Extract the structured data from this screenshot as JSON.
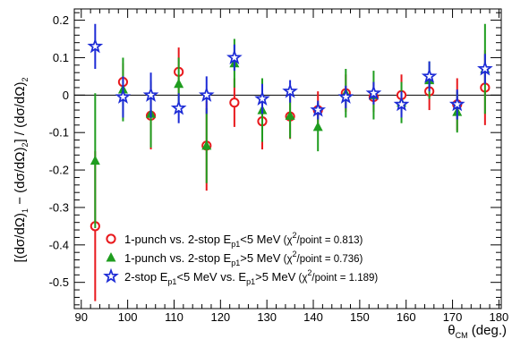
{
  "chart_data": {
    "type": "scatter",
    "title": "",
    "xlabel": "θCM (deg.)",
    "xlabel_main": "θ",
    "xlabel_sub": "CM",
    "xlabel_unit": " (deg.)",
    "ylabel": "[(dσ/dΩ)1 − (dσ/dΩ)2] / (dσ/dΩ)2",
    "ylabel_parts": {
      "open": "[(dσ/dΩ)",
      "sub1": "1",
      "mid": " − (dσ/dΩ)",
      "sub2": "2",
      "mid2": "] / (dσ/dΩ)",
      "sub3": "2"
    },
    "xlim": [
      88.5,
      180.5
    ],
    "ylim": [
      -0.57,
      0.23
    ],
    "x_ticks": [
      90,
      100,
      110,
      120,
      130,
      140,
      150,
      160,
      170,
      180
    ],
    "x_tick_labels": [
      "90",
      "100",
      "110",
      "120",
      "130",
      "140",
      "150",
      "160",
      "170",
      "180"
    ],
    "y_ticks": [
      -0.5,
      -0.4,
      -0.3,
      -0.2,
      -0.1,
      0,
      0.1,
      0.2
    ],
    "y_tick_labels": [
      "-0.5",
      "-0.4",
      "-0.3",
      "-0.2",
      "-0.1",
      "0",
      "0.1",
      "0.2"
    ],
    "reference_line": 0,
    "grid": false,
    "legend_position": "bottom-left",
    "series": [
      {
        "name": "1-punch vs. 2-stop Ep1<5 MeV",
        "legend_parts": {
          "main": "1-punch vs. 2-stop E",
          "sub": "p1",
          "rest": "<5 MeV"
        },
        "fit": "(χ2/point = 0.813)",
        "fit_parts": {
          "open": "(χ",
          "sup": "2",
          "rest": "/point = 0.813)"
        },
        "marker": "open-circle",
        "color": "#e8191d",
        "x": [
          93,
          99,
          105,
          111,
          117,
          123,
          129,
          135,
          141,
          147,
          153,
          159,
          165,
          171,
          177
        ],
        "y": [
          -0.35,
          0.035,
          -0.055,
          0.062,
          -0.135,
          -0.02,
          -0.07,
          -0.057,
          -0.04,
          0.005,
          -0.005,
          0.0,
          0.01,
          -0.025,
          0.02
        ],
        "err": [
          0.2,
          0.05,
          0.09,
          0.065,
          0.12,
          0.065,
          0.075,
          0.06,
          0.05,
          0.05,
          0.04,
          0.055,
          0.05,
          0.07,
          0.1
        ]
      },
      {
        "name": "1-punch vs. 2-stop Ep1>5 MeV",
        "legend_parts": {
          "main": "1-punch vs. 2-stop E",
          "sub": "p1",
          "rest": ">5 MeV"
        },
        "fit": "(χ2/point = 0.736)",
        "fit_parts": {
          "open": "(χ",
          "sup": "2",
          "rest": "/point = 0.736)"
        },
        "marker": "filled-triangle",
        "color": "#1f9d1f",
        "x": [
          93,
          99,
          105,
          111,
          117,
          123,
          129,
          135,
          141,
          147,
          153,
          159,
          165,
          171,
          177
        ],
        "y": [
          -0.175,
          0.015,
          -0.05,
          0.03,
          -0.135,
          0.085,
          -0.04,
          -0.055,
          -0.085,
          0.005,
          0.0,
          -0.02,
          0.04,
          -0.045,
          0.07
        ],
        "err": [
          0.18,
          0.085,
          0.09,
          0.07,
          0.1,
          0.065,
          0.085,
          0.06,
          0.065,
          0.065,
          0.065,
          0.055,
          0.05,
          0.055,
          0.12
        ]
      },
      {
        "name": "2-stop Ep1<5 MeV vs. Ep1>5 MeV",
        "legend_parts": {
          "a": "2-stop E",
          "sub1": "p1",
          "b": "<5 MeV vs. E",
          "sub2": "p1",
          "c": ">5 MeV"
        },
        "fit": "(χ2/point = 1.189)",
        "fit_parts": {
          "open": "(χ",
          "sup": "2",
          "rest": "/point = 1.189)"
        },
        "marker": "open-star",
        "color": "#1c2bd6",
        "x": [
          93,
          99,
          105,
          111,
          117,
          123,
          129,
          135,
          141,
          147,
          153,
          159,
          165,
          171,
          177
        ],
        "y": [
          0.13,
          -0.005,
          0.0,
          -0.035,
          0.0,
          0.1,
          -0.01,
          0.01,
          -0.04,
          -0.005,
          0.005,
          -0.025,
          0.05,
          -0.025,
          0.07
        ],
        "err": [
          0.06,
          0.055,
          0.06,
          0.04,
          0.05,
          0.035,
          0.04,
          0.03,
          0.025,
          0.03,
          0.03,
          0.035,
          0.04,
          0.04,
          0.04
        ]
      }
    ]
  }
}
